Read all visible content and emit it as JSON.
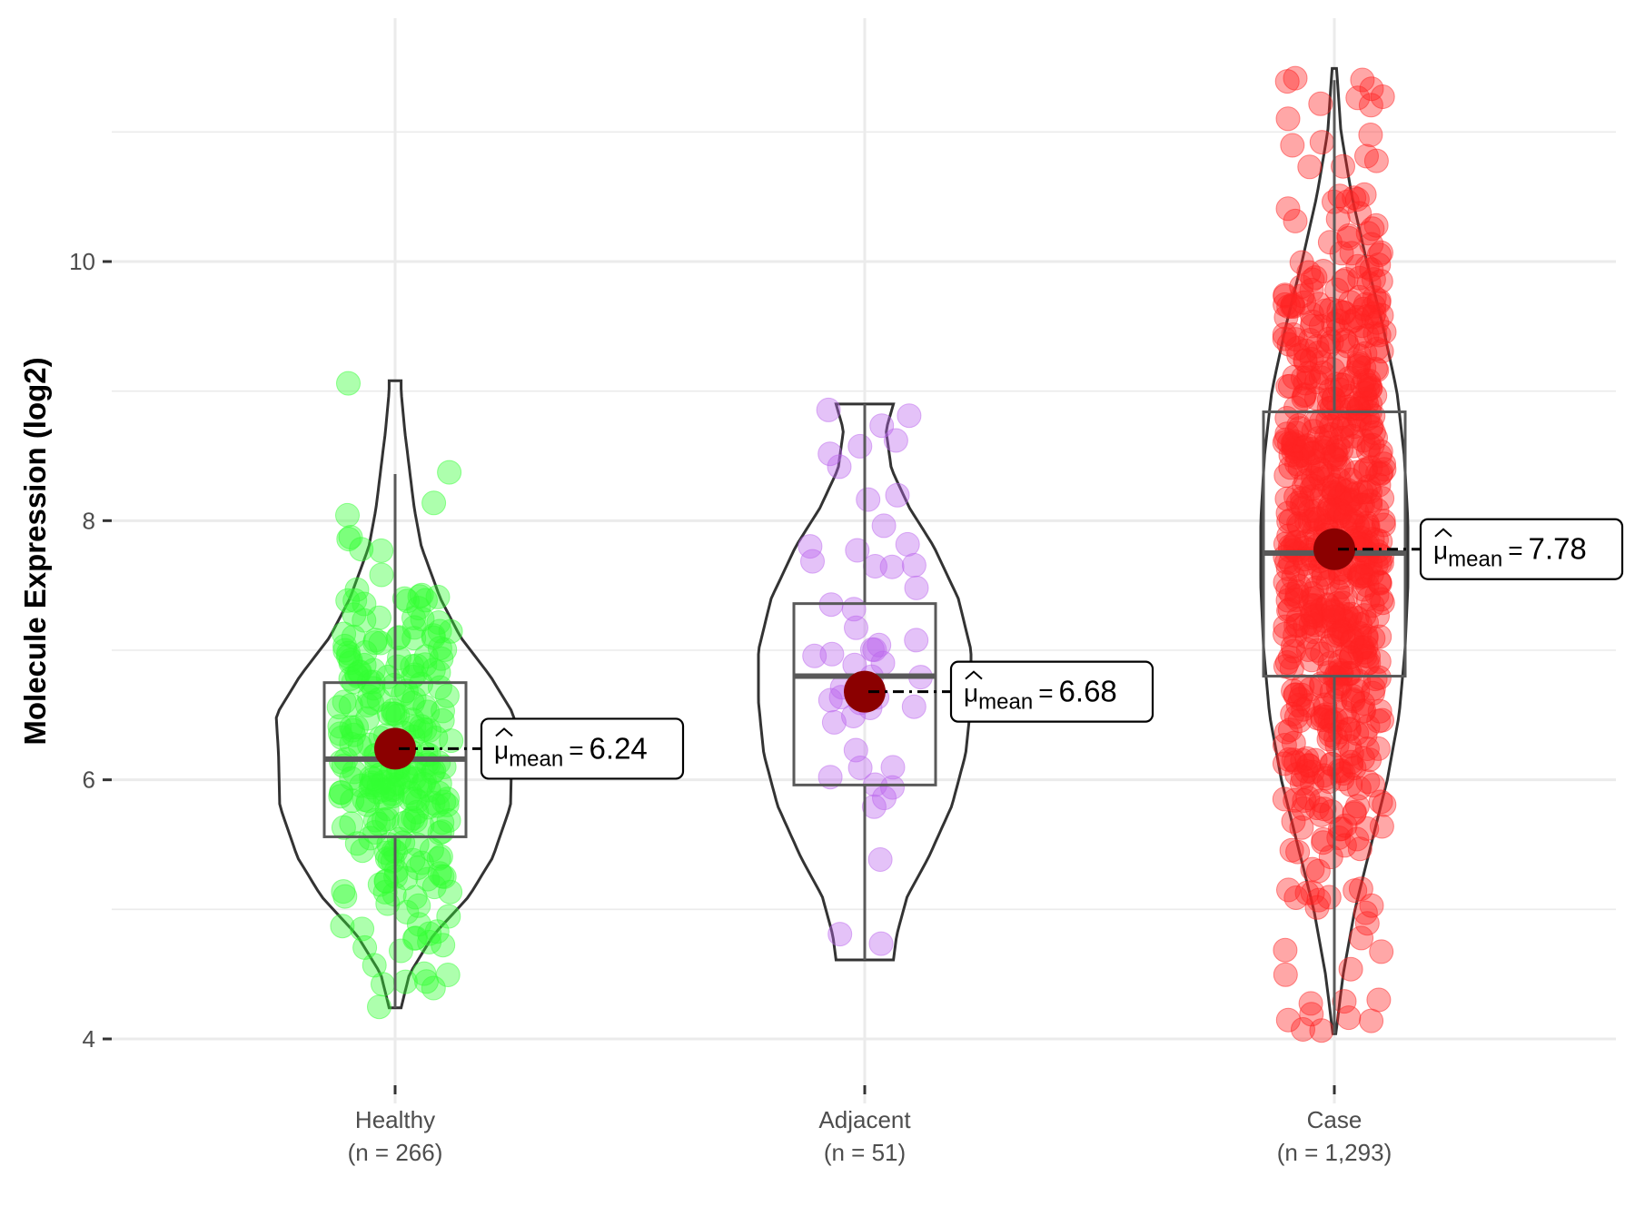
{
  "chart_data": {
    "type": "violin-box-jitter",
    "title": "",
    "xlabel": "",
    "ylabel": "Molecule Expression (log2)",
    "ylim": [
      3.4,
      11.6
    ],
    "yticks": [
      4,
      6,
      8,
      10
    ],
    "ytick_labels": [
      "4",
      "6",
      "8",
      "10"
    ],
    "minor_gridlines": [
      5,
      7,
      9,
      11
    ],
    "grid": true,
    "legend": "none",
    "mean_symbol": "μ",
    "mean_subscript": "mean",
    "groups": [
      {
        "name": "Healthy",
        "n_label": "(n = 266)",
        "n": 266,
        "color": "#33ff33",
        "mean": 6.24,
        "mean_label": "6.24",
        "median": 6.16,
        "q1": 5.56,
        "q3": 6.75,
        "whisker_low": 4.24,
        "whisker_high": 8.36,
        "min": 4.24,
        "max": 9.08,
        "density": [
          [
            4.24,
            0.05
          ],
          [
            4.5,
            0.12
          ],
          [
            4.8,
            0.32
          ],
          [
            5.1,
            0.62
          ],
          [
            5.4,
            0.82
          ],
          [
            5.8,
            0.97
          ],
          [
            6.2,
            0.98
          ],
          [
            6.5,
            1.0
          ],
          [
            6.8,
            0.8
          ],
          [
            7.1,
            0.55
          ],
          [
            7.4,
            0.38
          ],
          [
            7.8,
            0.22
          ],
          [
            8.1,
            0.16
          ],
          [
            8.4,
            0.12
          ],
          [
            8.7,
            0.08
          ],
          [
            9.0,
            0.05
          ],
          [
            9.08,
            0.05
          ]
        ]
      },
      {
        "name": "Adjacent",
        "n_label": "(n = 51)",
        "n": 51,
        "color": "#bb66ee",
        "mean": 6.68,
        "mean_label": "6.68",
        "median": 6.8,
        "q1": 5.96,
        "q3": 7.36,
        "whisker_low": 4.61,
        "whisker_high": 8.9,
        "min": 4.61,
        "max": 8.9,
        "density": [
          [
            4.61,
            0.27
          ],
          [
            4.8,
            0.3
          ],
          [
            5.1,
            0.4
          ],
          [
            5.4,
            0.6
          ],
          [
            5.8,
            0.82
          ],
          [
            6.2,
            0.95
          ],
          [
            6.6,
            1.0
          ],
          [
            7.0,
            1.0
          ],
          [
            7.4,
            0.88
          ],
          [
            7.8,
            0.65
          ],
          [
            8.1,
            0.42
          ],
          [
            8.4,
            0.25
          ],
          [
            8.7,
            0.2
          ],
          [
            8.9,
            0.27
          ]
        ]
      },
      {
        "name": "Case",
        "n_label": "(n = 1,293)",
        "n": 1293,
        "color": "#ff2222",
        "mean": 7.78,
        "mean_label": "7.78",
        "median": 7.75,
        "q1": 6.8,
        "q3": 8.84,
        "whisker_low": 4.04,
        "whisker_high": 11.4,
        "min": 4.04,
        "max": 11.49,
        "density": [
          [
            4.04,
            0.02
          ],
          [
            4.5,
            0.12
          ],
          [
            5.0,
            0.28
          ],
          [
            5.5,
            0.5
          ],
          [
            6.0,
            0.72
          ],
          [
            6.5,
            0.88
          ],
          [
            7.0,
            0.96
          ],
          [
            7.5,
            1.0
          ],
          [
            8.0,
            1.0
          ],
          [
            8.5,
            0.95
          ],
          [
            9.0,
            0.85
          ],
          [
            9.5,
            0.66
          ],
          [
            10.0,
            0.44
          ],
          [
            10.5,
            0.24
          ],
          [
            11.0,
            0.09
          ],
          [
            11.49,
            0.03
          ]
        ]
      }
    ]
  }
}
